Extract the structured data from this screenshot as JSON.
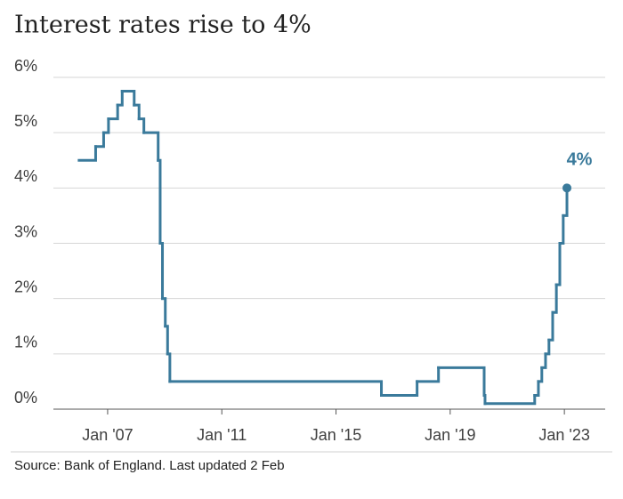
{
  "chart_data": {
    "type": "step",
    "title": "Interest rates rise to 4%",
    "source": "Source: Bank of England. Last updated 2 Feb",
    "annotation": "4%",
    "color": "#3a7a9b",
    "grid": true,
    "x": [
      2006.0,
      2006.58,
      2006.86,
      2007.03,
      2007.35,
      2007.51,
      2007.93,
      2008.1,
      2008.27,
      2008.77,
      2008.84,
      2008.92,
      2009.02,
      2009.1,
      2009.18,
      2016.59,
      2017.84,
      2018.59,
      2020.19,
      2020.22,
      2021.96,
      2022.09,
      2022.21,
      2022.34,
      2022.46,
      2022.59,
      2022.72,
      2022.84,
      2022.96,
      2023.09
    ],
    "values": [
      4.5,
      4.75,
      5,
      5.25,
      5.5,
      5.75,
      5.5,
      5.25,
      5,
      4.5,
      3,
      2,
      1.5,
      1,
      0.5,
      0.25,
      0.5,
      0.75,
      0.25,
      0.1,
      0.25,
      0.5,
      0.75,
      1,
      1.25,
      1.75,
      2.25,
      3,
      3.5,
      4
    ],
    "xlim": [
      2005.1,
      2024.43
    ],
    "xticks": [
      {
        "value": 2007,
        "label": "Jan '07"
      },
      {
        "value": 2011,
        "label": "Jan '11"
      },
      {
        "value": 2015,
        "label": "Jan '15"
      },
      {
        "value": 2019,
        "label": "Jan '19"
      },
      {
        "value": 2023,
        "label": "Jan '23"
      }
    ],
    "ylim": [
      0,
      6
    ],
    "yticks": [
      {
        "value": 0,
        "label": "0%"
      },
      {
        "value": 1,
        "label": "1%"
      },
      {
        "value": 2,
        "label": "2%"
      },
      {
        "value": 3,
        "label": "3%"
      },
      {
        "value": 4,
        "label": "4%"
      },
      {
        "value": 5,
        "label": "5%"
      },
      {
        "value": 6,
        "label": "6%"
      }
    ]
  }
}
